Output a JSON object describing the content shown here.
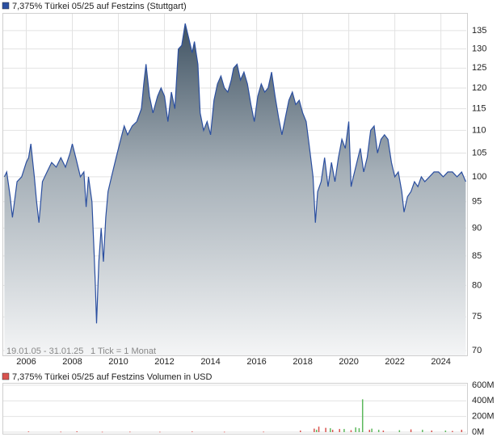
{
  "chart_data": [
    {
      "type": "area",
      "title": "7,375% Türkei 05/25 auf Festzins (Stuttgart)",
      "date_range": "19.01.05 - 31.01.25",
      "tick_note": "1 Tick = 1 Monat",
      "color": "#2b4fa0",
      "log_scale": true,
      "grid": true,
      "x": [
        2005.05,
        2005.15,
        2005.3,
        2005.4,
        2005.6,
        2005.8,
        2006.0,
        2006.1,
        2006.2,
        2006.35,
        2006.45,
        2006.55,
        2006.7,
        2006.9,
        2007.1,
        2007.3,
        2007.5,
        2007.7,
        2007.9,
        2008.0,
        2008.15,
        2008.35,
        2008.5,
        2008.6,
        2008.7,
        2008.85,
        2008.95,
        2009.0,
        2009.05,
        2009.15,
        2009.25,
        2009.35,
        2009.45,
        2009.55,
        2009.7,
        2009.9,
        2010.1,
        2010.25,
        2010.4,
        2010.6,
        2010.8,
        2011.0,
        2011.1,
        2011.2,
        2011.35,
        2011.5,
        2011.7,
        2011.85,
        2012.0,
        2012.15,
        2012.3,
        2012.45,
        2012.6,
        2012.75,
        2012.9,
        2013.05,
        2013.2,
        2013.3,
        2013.45,
        2013.55,
        2013.7,
        2013.85,
        2014.0,
        2014.15,
        2014.3,
        2014.45,
        2014.6,
        2014.75,
        2014.9,
        2015.0,
        2015.15,
        2015.3,
        2015.45,
        2015.6,
        2015.75,
        2015.9,
        2016.05,
        2016.2,
        2016.35,
        2016.5,
        2016.65,
        2016.8,
        2016.95,
        2017.1,
        2017.25,
        2017.4,
        2017.55,
        2017.7,
        2017.85,
        2018.0,
        2018.15,
        2018.3,
        2018.45,
        2018.55,
        2018.65,
        2018.8,
        2018.95,
        2019.1,
        2019.25,
        2019.4,
        2019.55,
        2019.7,
        2019.85,
        2020.0,
        2020.1,
        2020.2,
        2020.35,
        2020.5,
        2020.65,
        2020.8,
        2020.95,
        2021.1,
        2021.25,
        2021.4,
        2021.55,
        2021.7,
        2021.85,
        2022.0,
        2022.15,
        2022.3,
        2022.4,
        2022.55,
        2022.7,
        2022.85,
        2023.0,
        2023.15,
        2023.3,
        2023.5,
        2023.7,
        2023.9,
        2024.1,
        2024.3,
        2024.5,
        2024.7,
        2024.9,
        2025.08
      ],
      "values": [
        100,
        101,
        96,
        92,
        99,
        100,
        103,
        104,
        107,
        100,
        95,
        91,
        99,
        101,
        103,
        102,
        104,
        102,
        105,
        107,
        104,
        100,
        101,
        94,
        100,
        95,
        85,
        80,
        74,
        84,
        90,
        84,
        92,
        97,
        100,
        104,
        108,
        111,
        109,
        111,
        112,
        115,
        121,
        126,
        118,
        114,
        118,
        120,
        118,
        112,
        119,
        115,
        130,
        131,
        137,
        133,
        129,
        132,
        126,
        114,
        110,
        112,
        109,
        117,
        121,
        123,
        120,
        119,
        122,
        125,
        126,
        122,
        124,
        121,
        116,
        112,
        118,
        121,
        119,
        120,
        124,
        118,
        113,
        109,
        113,
        117,
        119,
        116,
        117,
        114,
        112,
        106,
        100,
        91,
        97,
        99,
        104,
        98,
        103,
        99,
        104,
        108,
        106,
        112,
        98,
        100,
        103,
        106,
        101,
        104,
        110,
        111,
        105,
        108,
        109,
        108,
        103,
        100,
        101,
        97,
        93,
        96,
        97,
        99,
        98,
        100,
        99,
        100,
        101,
        101,
        100,
        101,
        101,
        100,
        101,
        99
      ],
      "xlim": [
        2005.0,
        2025.1
      ],
      "xticks": [
        2006,
        2008,
        2010,
        2012,
        2014,
        2016,
        2018,
        2020,
        2022,
        2024
      ],
      "ylim": [
        69.3,
        140
      ],
      "yticks": [
        135,
        130,
        125,
        120,
        115,
        110,
        105,
        100,
        95,
        90,
        85,
        80,
        75,
        70
      ]
    },
    {
      "type": "bar",
      "title": "7,375% Türkei 05/25 auf Festzins Volumen in USD",
      "grid": true,
      "series": [
        {
          "color": "#d9534f",
          "x": [
            2006.1,
            2007.5,
            2008.2,
            2009.3,
            2010.5,
            2011.8,
            2013.2,
            2014.6,
            2016.3,
            2017.9,
            2018.5,
            2018.7,
            2019.0,
            2019.3,
            2019.6,
            2020.1,
            2020.9,
            2021.5,
            2022.7,
            2023.6,
            2024.5,
            2024.9
          ],
          "values": [
            8000000,
            6000000,
            10000000,
            5000000,
            6000000,
            5000000,
            8000000,
            5000000,
            6000000,
            20000000,
            45000000,
            70000000,
            55000000,
            30000000,
            40000000,
            25000000,
            30000000,
            20000000,
            35000000,
            20000000,
            15000000,
            30000000
          ]
        },
        {
          "color": "#5cb85c",
          "x": [
            2018.6,
            2019.2,
            2019.8,
            2020.3,
            2020.45,
            2020.6,
            2021.0,
            2021.3,
            2022.2,
            2023.2,
            2024.2
          ],
          "values": [
            30000000,
            50000000,
            40000000,
            60000000,
            50000000,
            420000000,
            45000000,
            30000000,
            25000000,
            30000000,
            20000000
          ]
        }
      ],
      "xlim": [
        2005.0,
        2025.1
      ],
      "ylim": [
        0,
        620000000
      ],
      "yticks": [
        {
          "value": 600000000,
          "label": "600M"
        },
        {
          "value": 400000000,
          "label": "400M"
        },
        {
          "value": 200000000,
          "label": "200M"
        },
        {
          "value": 0,
          "label": "0M"
        }
      ]
    }
  ]
}
